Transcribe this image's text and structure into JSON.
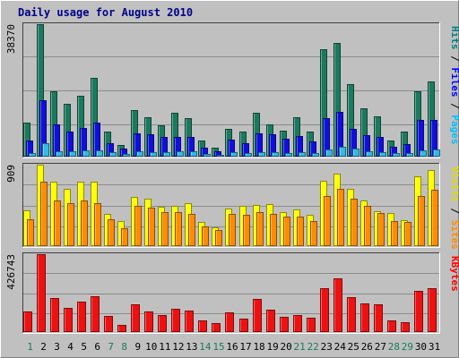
{
  "chart_data": {
    "type": "bar",
    "title": "Daily usage for August 2010",
    "categories": [
      "1",
      "2",
      "3",
      "4",
      "5",
      "6",
      "7",
      "8",
      "9",
      "10",
      "11",
      "12",
      "13",
      "14",
      "15",
      "16",
      "17",
      "18",
      "19",
      "20",
      "21",
      "22",
      "23",
      "24",
      "25",
      "26",
      "27",
      "28",
      "29",
      "30",
      "31"
    ],
    "weekend_days": [
      "1",
      "7",
      "8",
      "14",
      "15",
      "21",
      "22",
      "28",
      "29"
    ],
    "panels": [
      {
        "name": "hits-files-pages",
        "ymax": 38370,
        "ymax_label": "38370",
        "legend": [
          {
            "text": "Hits",
            "color": "#008080"
          },
          {
            "text": " / ",
            "color": "#000000"
          },
          {
            "text": "Files",
            "color": "#0000ff"
          },
          {
            "text": " / ",
            "color": "#000000"
          },
          {
            "text": "Pages",
            "color": "#00bfff"
          }
        ],
        "series": [
          {
            "name": "Hits",
            "color": "#1a7a5e",
            "values": [
              9800,
              38370,
              18900,
              15300,
              17600,
              22700,
              7300,
              3300,
              13600,
              11300,
              9200,
              12600,
              11100,
              4600,
              2600,
              8000,
              7200,
              12600,
              9400,
              7400,
              11400,
              7300,
              31000,
              33000,
              21000,
              14000,
              11700,
              4700,
              7300,
              19000,
              21800
            ]
          },
          {
            "name": "Files",
            "color": "#1010dd",
            "values": [
              4600,
              16400,
              9400,
              7200,
              8400,
              9900,
              3900,
              2300,
              6800,
              6500,
              5600,
              5800,
              5600,
              2600,
              1600,
              4800,
              3900,
              6700,
              6600,
              5300,
              6000,
              4300,
              11200,
              13000,
              8000,
              6100,
              5700,
              2900,
              3700,
              10600,
              10700
            ]
          },
          {
            "name": "Pages",
            "color": "#33b8e8",
            "values": [
              1100,
              3900,
              1600,
              1600,
              1700,
              1800,
              1400,
              700,
              1600,
              1200,
              1300,
              1600,
              1500,
              700,
              600,
              1200,
              1000,
              1400,
              1300,
              1000,
              1200,
              1100,
              2200,
              2800,
              2300,
              1500,
              1200,
              1000,
              1100,
              1900,
              2000
            ]
          }
        ]
      },
      {
        "name": "visits-sites",
        "ymax": 909,
        "ymax_label": "909",
        "legend": [
          {
            "text": "Visits",
            "color": "#dddd00"
          },
          {
            "text": " / ",
            "color": "#000000"
          },
          {
            "text": "Sites",
            "color": "#ff8c00"
          }
        ],
        "series": [
          {
            "name": "Visits",
            "color": "#ffff00",
            "values": [
              400,
              909,
              720,
              640,
              720,
              715,
              360,
              280,
              550,
              530,
              440,
              450,
              480,
              270,
              210,
              420,
              450,
              460,
              470,
              380,
              410,
              350,
              730,
              810,
              640,
              510,
              390,
              370,
              290,
              780,
              850
            ]
          },
          {
            "name": "Sites",
            "color": "#ff8c00",
            "values": [
              300,
              720,
              510,
              480,
              510,
              480,
              300,
              200,
              450,
              430,
              380,
              380,
              360,
              220,
              175,
              360,
              350,
              380,
              360,
              330,
              330,
              280,
              560,
              640,
              530,
              450,
              370,
              280,
              270,
              560,
              630
            ]
          }
        ]
      },
      {
        "name": "kbytes",
        "ymax": 426743,
        "ymax_label": "426743",
        "legend": [
          {
            "text": "KBytes",
            "color": "#ff0000"
          }
        ],
        "series": [
          {
            "name": "KBytes",
            "color": "#ee1111",
            "values": [
              112000,
              426743,
              187000,
              134000,
              167000,
              194000,
              88000,
              38000,
              153000,
              115000,
              92000,
              128000,
              118000,
              63000,
              50000,
              106000,
              76000,
              181000,
              124000,
              85000,
              93000,
              80000,
              240000,
              295000,
              193000,
              158000,
              151000,
              63000,
              54000,
              226000,
              238000
            ]
          }
        ]
      }
    ]
  }
}
